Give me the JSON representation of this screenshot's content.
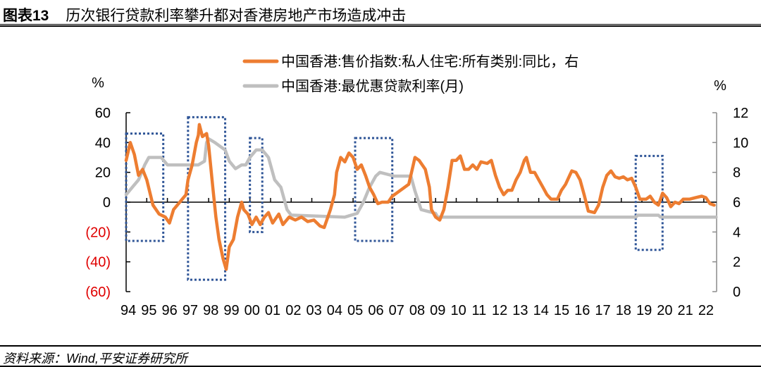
{
  "header": {
    "figure_number": "图表13",
    "title": "历次银行贷款利率攀升都对香港房地产市场造成冲击"
  },
  "footer": {
    "source": "资料来源：Wind,平安证券研究所"
  },
  "colors": {
    "orange_series": "#ED7D31",
    "gray_series": "#BFBFBF",
    "highlight_box": "#2F5597",
    "negative_label": "#E00000",
    "axis": "#000000",
    "right_axis": "#8C8C8C"
  },
  "chart_data": {
    "type": "line",
    "title": "历次银行贷款利率攀升都对香港房地产市场造成冲击",
    "xlabel": "",
    "left_axis": {
      "unit": "%",
      "ylim": [
        -60,
        60
      ],
      "ticks": [
        60,
        40,
        20,
        0,
        -20,
        -40,
        -60
      ],
      "tick_labels": [
        "60",
        "40",
        "20",
        "0",
        "(20)",
        "(40)",
        "(60)"
      ]
    },
    "right_axis": {
      "unit": "%",
      "ylim": [
        0,
        12
      ],
      "ticks": [
        12,
        10,
        8,
        6,
        4,
        2,
        0
      ],
      "tick_labels": [
        "12",
        "10",
        "8",
        "6",
        "4",
        "2",
        "0"
      ]
    },
    "categories": [
      "94",
      "95",
      "96",
      "97",
      "98",
      "99",
      "00",
      "01",
      "02",
      "03",
      "04",
      "05",
      "06",
      "07",
      "08",
      "09",
      "10",
      "11",
      "12",
      "13",
      "14",
      "15",
      "16",
      "17",
      "18",
      "19",
      "20",
      "21",
      "22"
    ],
    "legend": [
      {
        "label": "中国香港:售价指数:私人住宅:所有类别:同比，右",
        "color": "#ED7D31"
      },
      {
        "label": "中国香港:最优惠贷款利率(月)",
        "color": "#BFBFBF"
      }
    ],
    "legend_position": "top",
    "grid": false,
    "series": [
      {
        "name": "中国香港:售价指数:私人住宅:所有类别:同比",
        "axis": "left",
        "color": "#ED7D31",
        "x": [
          1994.0,
          1994.2,
          1994.4,
          1994.6,
          1994.8,
          1995.0,
          1995.3,
          1995.6,
          1995.9,
          1996.1,
          1996.3,
          1996.6,
          1996.9,
          1997.0,
          1997.2,
          1997.4,
          1997.5,
          1997.55,
          1997.7,
          1997.9,
          1998.0,
          1998.2,
          1998.35,
          1998.5,
          1998.7,
          1998.85,
          1999.0,
          1999.2,
          1999.4,
          1999.6,
          1999.7,
          1999.9,
          2000.1,
          2000.3,
          2000.5,
          2000.7,
          2000.9,
          2001.1,
          2001.4,
          2001.6,
          2001.9,
          2002.2,
          2002.5,
          2002.8,
          2003.1,
          2003.4,
          2003.6,
          2003.9,
          2004.1,
          2004.2,
          2004.4,
          2004.6,
          2004.8,
          2005.0,
          2005.2,
          2005.4,
          2005.6,
          2005.8,
          2006.0,
          2006.2,
          2006.4,
          2006.7,
          2006.9,
          2007.1,
          2007.4,
          2007.7,
          2007.9,
          2008.0,
          2008.2,
          2008.5,
          2008.7,
          2008.8,
          2009.0,
          2009.2,
          2009.4,
          2009.6,
          2009.8,
          2010.0,
          2010.2,
          2010.4,
          2010.6,
          2010.8,
          2011.0,
          2011.2,
          2011.5,
          2011.7,
          2011.9,
          2012.1,
          2012.3,
          2012.5,
          2012.7,
          2012.9,
          2013.1,
          2013.3,
          2013.4,
          2013.6,
          2013.8,
          2014.0,
          2014.2,
          2014.4,
          2014.6,
          2014.9,
          2015.1,
          2015.3,
          2015.5,
          2015.6,
          2015.8,
          2016.0,
          2016.2,
          2016.4,
          2016.7,
          2016.9,
          2017.1,
          2017.3,
          2017.5,
          2017.7,
          2017.9,
          2018.1,
          2018.3,
          2018.5,
          2018.7,
          2018.9,
          2019.2,
          2019.4,
          2019.6,
          2019.8,
          2020.0,
          2020.2,
          2020.4,
          2020.6,
          2020.8,
          2021.0,
          2021.3,
          2021.6,
          2021.9,
          2022.1,
          2022.3,
          2022.5
        ],
        "values": [
          28,
          40,
          32,
          18,
          22,
          15,
          -2,
          -8,
          -10,
          -14,
          -5,
          0,
          5,
          15,
          25,
          40,
          45,
          52,
          44,
          46,
          38,
          10,
          -10,
          -25,
          -38,
          -45,
          -30,
          -25,
          -10,
          0,
          -5,
          -8,
          -15,
          -10,
          -15,
          -10,
          -7,
          -14,
          -8,
          -15,
          -10,
          -12,
          -10,
          -13,
          -12,
          -16,
          -17,
          -5,
          5,
          20,
          30,
          27,
          33,
          30,
          22,
          25,
          18,
          10,
          5,
          -1,
          0,
          0,
          4,
          6,
          9,
          12,
          24,
          30,
          28,
          22,
          10,
          -5,
          -10,
          -12,
          -5,
          10,
          28,
          28,
          31,
          22,
          22,
          25,
          22,
          27,
          26,
          28,
          18,
          10,
          5,
          8,
          8,
          15,
          20,
          28,
          30,
          20,
          20,
          15,
          10,
          5,
          2,
          2,
          8,
          12,
          18,
          21,
          20,
          15,
          5,
          -6,
          -7,
          -2,
          10,
          18,
          21,
          17,
          16,
          17,
          15,
          16,
          10,
          2,
          2,
          4,
          0,
          -2,
          6,
          3,
          -3,
          0,
          -1,
          2,
          2,
          3,
          4,
          3,
          -1,
          -2
        ]
      },
      {
        "name": "中国香港:最优惠贷款利率(月)",
        "axis": "right",
        "color": "#BFBFBF",
        "x": [
          1994.0,
          1994.3,
          1994.6,
          1994.9,
          1995.1,
          1995.7,
          1996.0,
          1997.5,
          1997.8,
          1997.9,
          1998.0,
          1998.3,
          1998.8,
          1999.0,
          1999.3,
          1999.6,
          1999.8,
          2000.0,
          2000.3,
          2000.6,
          2000.9,
          2001.2,
          2001.5,
          2001.8,
          2002.0,
          2004.6,
          2005.2,
          2005.5,
          2005.8,
          2006.1,
          2006.3,
          2007.0,
          2007.8,
          2008.0,
          2008.3,
          2009.0,
          2009.1,
          2018.7,
          2018.8,
          2019.8,
          2019.9,
          2022.6
        ],
        "values": [
          6.5,
          7.0,
          7.5,
          8.5,
          9.0,
          9.0,
          8.5,
          8.5,
          8.75,
          10.0,
          10.25,
          10.0,
          9.5,
          8.75,
          8.25,
          8.5,
          8.5,
          9.0,
          9.5,
          9.5,
          9.0,
          7.5,
          7.0,
          5.5,
          5.13,
          5.0,
          5.25,
          6.0,
          7.0,
          7.75,
          8.0,
          7.75,
          7.75,
          6.75,
          5.5,
          5.25,
          5.0,
          5.0,
          5.125,
          5.125,
          5.0,
          5.0
        ]
      }
    ],
    "annotations": [
      {
        "type": "dotted-box",
        "x_range": [
          1994.0,
          1995.8
        ],
        "left_y_range": [
          -26,
          46
        ]
      },
      {
        "type": "dotted-box",
        "x_range": [
          1997.0,
          1998.8
        ],
        "left_y_range": [
          -52,
          57
        ]
      },
      {
        "type": "dotted-box",
        "x_range": [
          2000.0,
          2000.6
        ],
        "left_y_range": [
          -20,
          43
        ]
      },
      {
        "type": "dotted-box",
        "x_range": [
          2005.1,
          2006.9
        ],
        "left_y_range": [
          -26,
          43
        ]
      },
      {
        "type": "dotted-box",
        "x_range": [
          2018.7,
          2020.0
        ],
        "left_y_range": [
          -32,
          31
        ]
      }
    ]
  }
}
